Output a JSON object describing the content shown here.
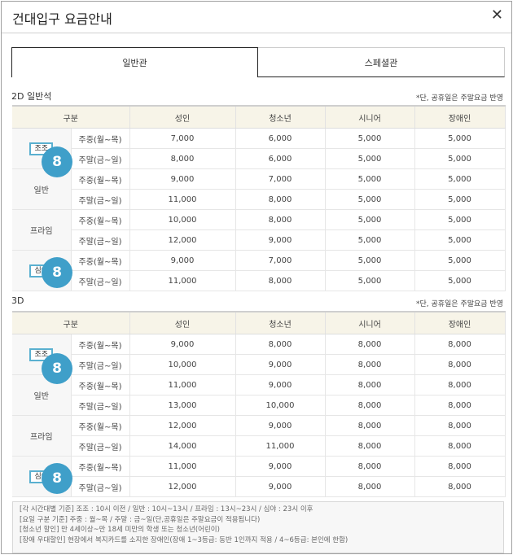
{
  "title": "건대입구 요금안내",
  "close_icon": "close-icon",
  "tabs": [
    {
      "label": "일반관",
      "active": true
    },
    {
      "label": "스페셜관",
      "active": false
    }
  ],
  "columns": [
    "구분",
    "성인",
    "청소년",
    "시니어",
    "장애인"
  ],
  "sections": [
    {
      "title": "2D 일반석",
      "note": "*단, 공휴일은 주말요금 반영",
      "groups": [
        {
          "name": "조조",
          "badge": true,
          "circle": "8",
          "rows": [
            {
              "day": "주중(월~목)",
              "values": [
                "7,000",
                "6,000",
                "5,000",
                "5,000"
              ]
            },
            {
              "day": "주말(금~일)",
              "values": [
                "8,000",
                "6,000",
                "5,000",
                "5,000"
              ]
            }
          ]
        },
        {
          "name": "일반",
          "badge": false,
          "rows": [
            {
              "day": "주중(월~목)",
              "values": [
                "9,000",
                "7,000",
                "5,000",
                "5,000"
              ]
            },
            {
              "day": "주말(금~일)",
              "values": [
                "11,000",
                "8,000",
                "5,000",
                "5,000"
              ]
            }
          ]
        },
        {
          "name": "프라임",
          "badge": false,
          "rows": [
            {
              "day": "주중(월~목)",
              "values": [
                "10,000",
                "8,000",
                "5,000",
                "5,000"
              ]
            },
            {
              "day": "주말(금~일)",
              "values": [
                "12,000",
                "9,000",
                "5,000",
                "5,000"
              ]
            }
          ]
        },
        {
          "name": "심야",
          "badge": true,
          "circle": "8",
          "rows": [
            {
              "day": "주중(월~목)",
              "values": [
                "9,000",
                "7,000",
                "5,000",
                "5,000"
              ]
            },
            {
              "day": "주말(금~일)",
              "values": [
                "11,000",
                "8,000",
                "5,000",
                "5,000"
              ]
            }
          ]
        }
      ]
    },
    {
      "title": "3D",
      "note": "*단, 공휴일은 주말요금 반영",
      "groups": [
        {
          "name": "조조",
          "badge": true,
          "circle": "8",
          "rows": [
            {
              "day": "주중(월~목)",
              "values": [
                "9,000",
                "8,000",
                "8,000",
                "8,000"
              ]
            },
            {
              "day": "주말(금~일)",
              "values": [
                "10,000",
                "9,000",
                "8,000",
                "8,000"
              ]
            }
          ]
        },
        {
          "name": "일반",
          "badge": false,
          "rows": [
            {
              "day": "주중(월~목)",
              "values": [
                "11,000",
                "9,000",
                "8,000",
                "8,000"
              ]
            },
            {
              "day": "주말(금~일)",
              "values": [
                "13,000",
                "10,000",
                "8,000",
                "8,000"
              ]
            }
          ]
        },
        {
          "name": "프라임",
          "badge": false,
          "rows": [
            {
              "day": "주중(월~목)",
              "values": [
                "12,000",
                "9,000",
                "8,000",
                "8,000"
              ]
            },
            {
              "day": "주말(금~일)",
              "values": [
                "14,000",
                "11,000",
                "8,000",
                "8,000"
              ]
            }
          ]
        },
        {
          "name": "심야",
          "badge": true,
          "circle": "8",
          "rows": [
            {
              "day": "주중(월~목)",
              "values": [
                "11,000",
                "9,000",
                "8,000",
                "8,000"
              ]
            },
            {
              "day": "주말(금~일)",
              "values": [
                "12,000",
                "9,000",
                "8,000",
                "8,000"
              ]
            }
          ]
        }
      ]
    }
  ],
  "notes": [
    "[각 시간대별 기준] 조조 : 10시 이전 / 일반 : 10시~13시 / 프라임 : 13시~23시 / 심야 : 23시 이후",
    "[요일 구분 기준] 주중 : 월~목 / 주말 : 금~일(단,공휴일은 주말요금이 적용됩니다)",
    "[청소년 할인] 만 4세이상~만 18세 미만의 학생 또는 청소년(어린이)",
    "[장애 우대할인] 현장에서 복지카드를 소지한 장애인(장애 1~3등급: 동반 1인까지 적용 / 4~6등급: 본인에 한함)"
  ],
  "colors": {
    "header_bg": "#f7f4e8",
    "badge_border": "#5ab0d0",
    "circle_bg": "#3f9fc9"
  }
}
